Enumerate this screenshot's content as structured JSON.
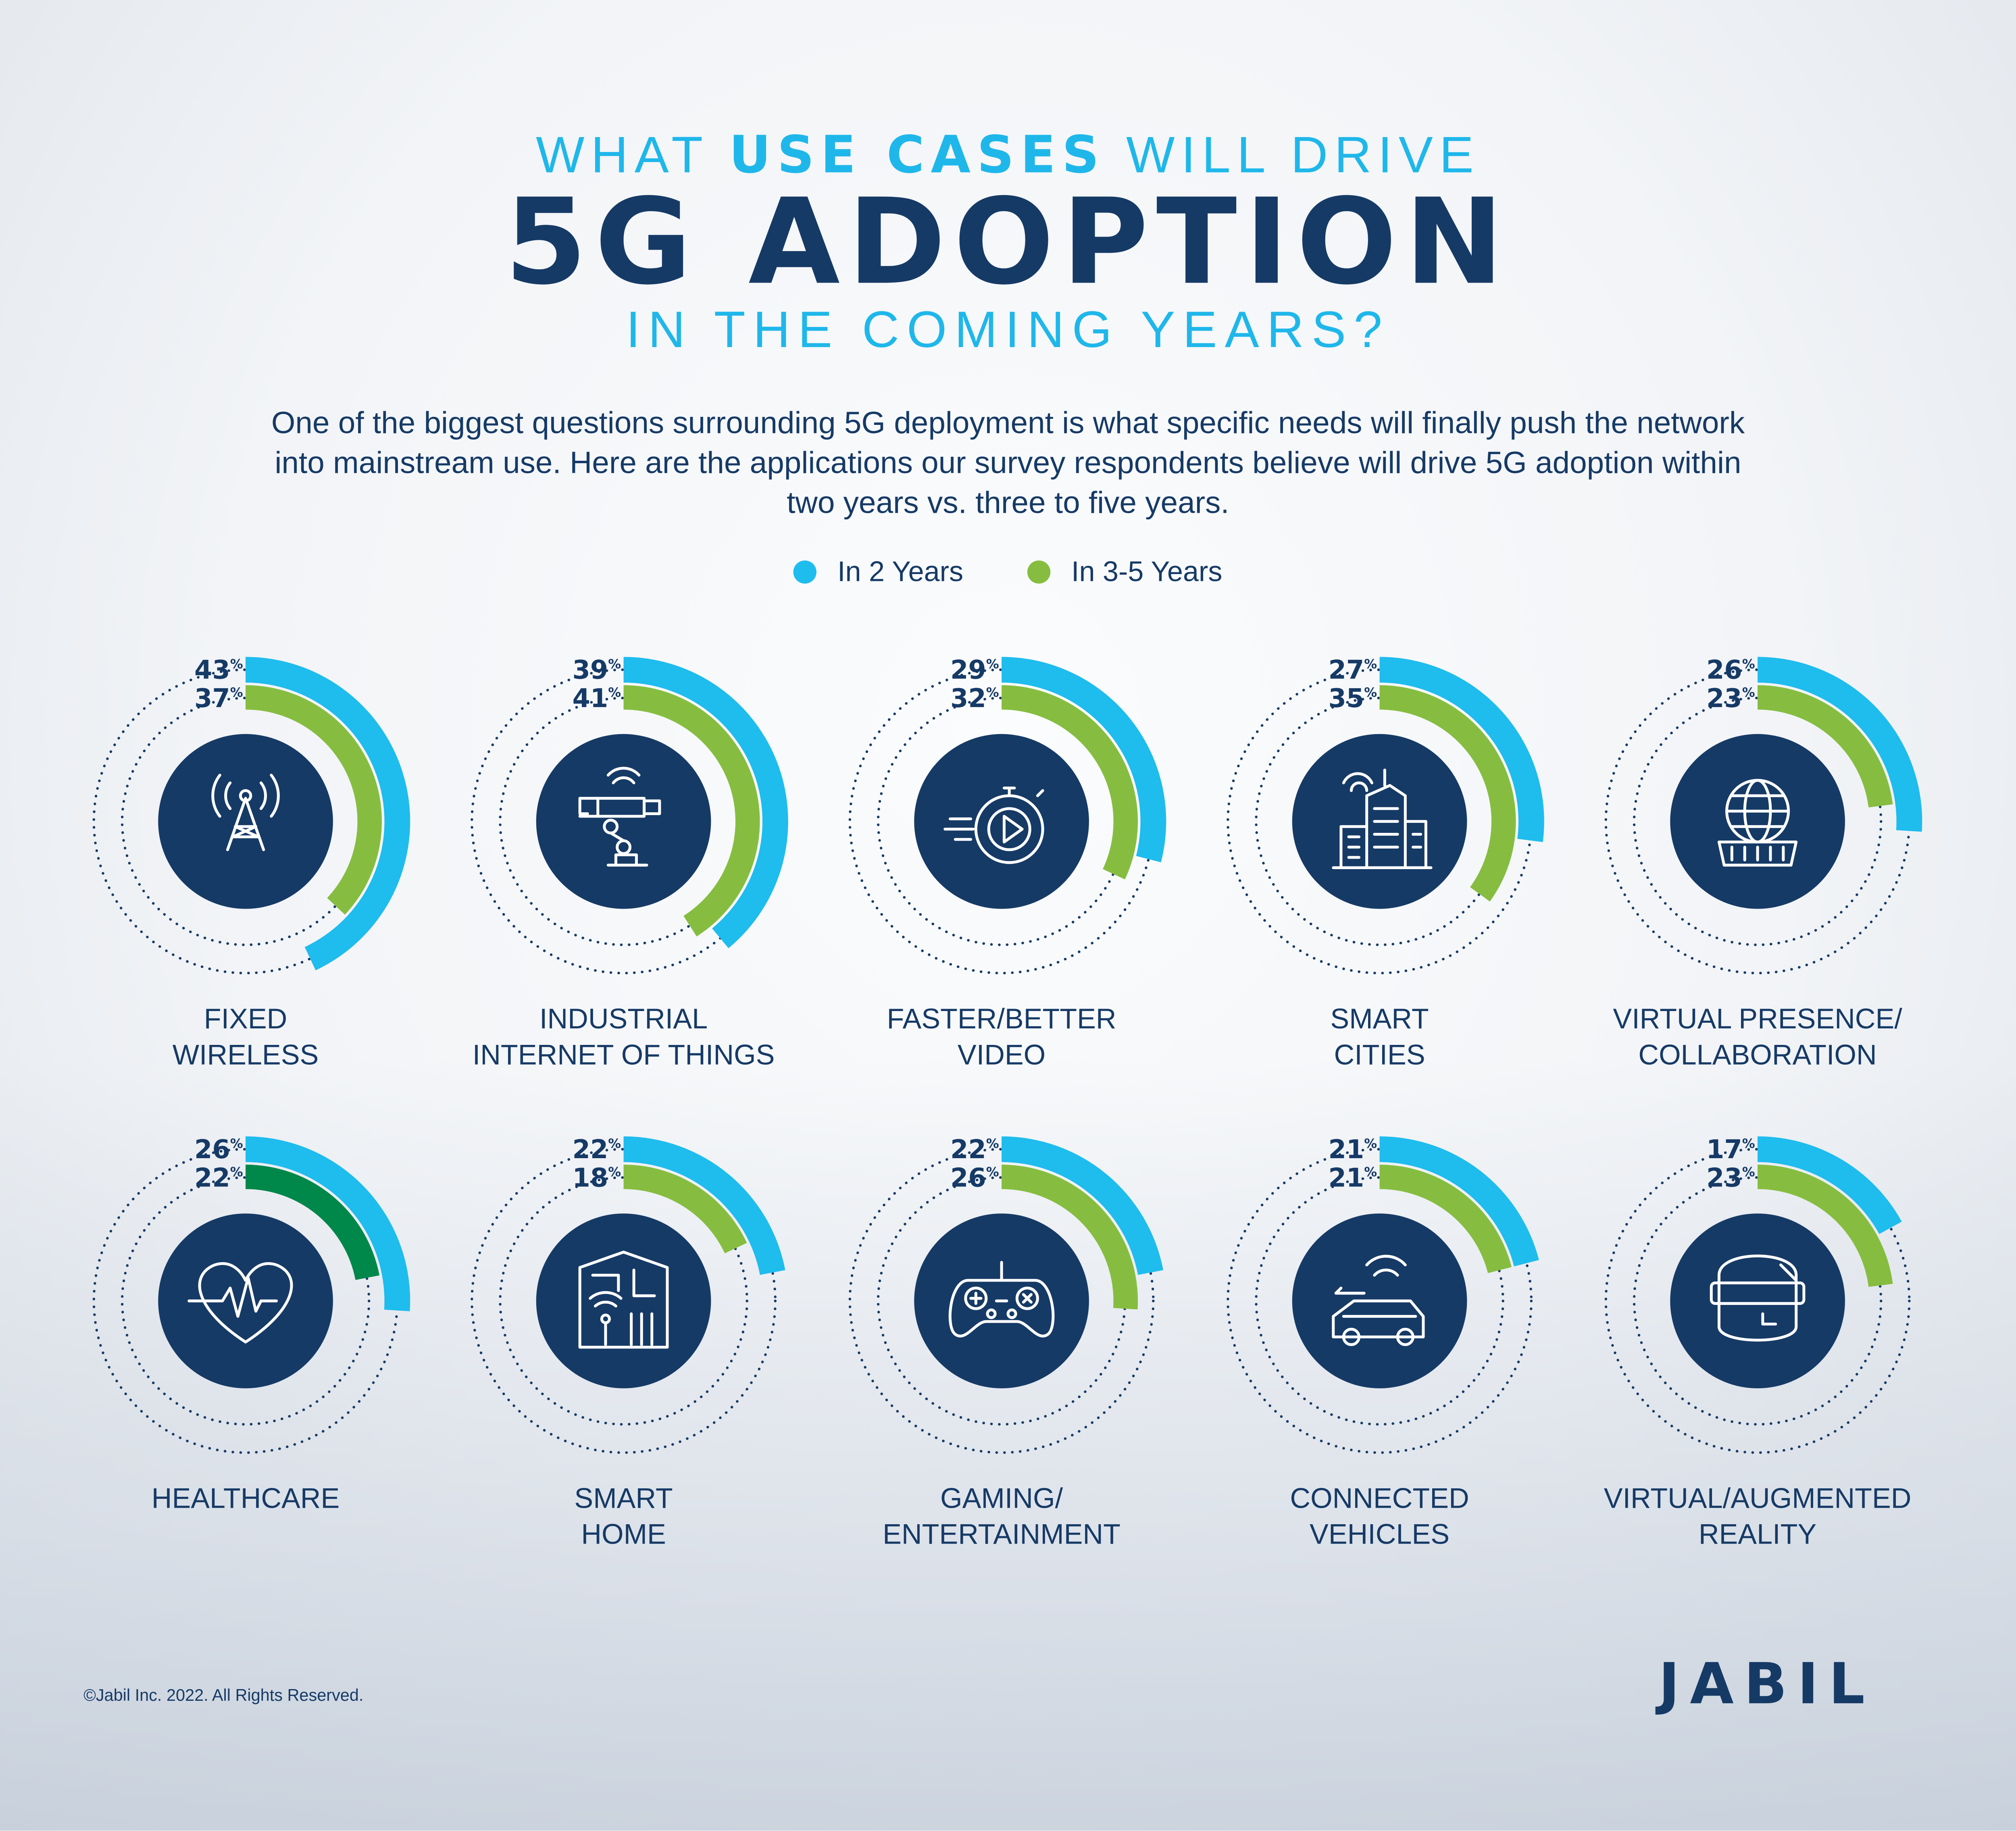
{
  "header": {
    "line1_pre": "WHAT ",
    "line1_bold": "USE CASES",
    "line1_post": " WILL DRIVE",
    "line2": "5G ADOPTION",
    "line3": "IN THE COMING YEARS?"
  },
  "intro": "One of the biggest questions surrounding 5G deployment is what specific needs will finally push the network into mainstream use. Here are the applications our survey respondents believe will drive 5G adoption within two years vs. three to five years.",
  "chart_data": {
    "type": "radial-bar",
    "series": [
      {
        "name": "In 2 Years",
        "color": "#1fbcee"
      },
      {
        "name": "In 3-5 Years",
        "color": "#86bd40"
      }
    ],
    "unit": "%",
    "categories": [
      {
        "label": [
          "FIXED",
          "WIRELESS"
        ],
        "icon": "cell-tower-icon",
        "values": [
          43,
          37
        ]
      },
      {
        "label": [
          "INDUSTRIAL",
          "INTERNET OF THINGS"
        ],
        "icon": "robot-arm-icon",
        "values": [
          39,
          41
        ]
      },
      {
        "label": [
          "FASTER/BETTER",
          "VIDEO"
        ],
        "icon": "video-stopwatch-icon",
        "values": [
          29,
          32
        ]
      },
      {
        "label": [
          "SMART",
          "CITIES"
        ],
        "icon": "city-buildings-icon",
        "values": [
          27,
          35
        ]
      },
      {
        "label": [
          "VIRTUAL PRESENCE/",
          "COLLABORATION"
        ],
        "icon": "globe-icon",
        "values": [
          26,
          23
        ]
      },
      {
        "label": [
          "HEALTHCARE",
          ""
        ],
        "icon": "heart-pulse-icon",
        "values": [
          26,
          22
        ],
        "green_color": "#00874a"
      },
      {
        "label": [
          "SMART",
          "HOME"
        ],
        "icon": "smart-home-icon",
        "values": [
          22,
          18
        ]
      },
      {
        "label": [
          "GAMING/",
          "ENTERTAINMENT"
        ],
        "icon": "gamepad-icon",
        "values": [
          22,
          26
        ]
      },
      {
        "label": [
          "CONNECTED",
          "VEHICLES"
        ],
        "icon": "connected-car-icon",
        "values": [
          21,
          21
        ]
      },
      {
        "label": [
          "VIRTUAL/AUGMENTED",
          "REALITY"
        ],
        "icon": "vr-headset-icon",
        "values": [
          17,
          23
        ]
      }
    ]
  },
  "colors": {
    "navy": "#163a66",
    "blue": "#1fbcee",
    "green": "#86bd40"
  },
  "footer": {
    "copyright": "©Jabil Inc. 2022. All Rights Reserved.",
    "logo": "JABIL"
  }
}
